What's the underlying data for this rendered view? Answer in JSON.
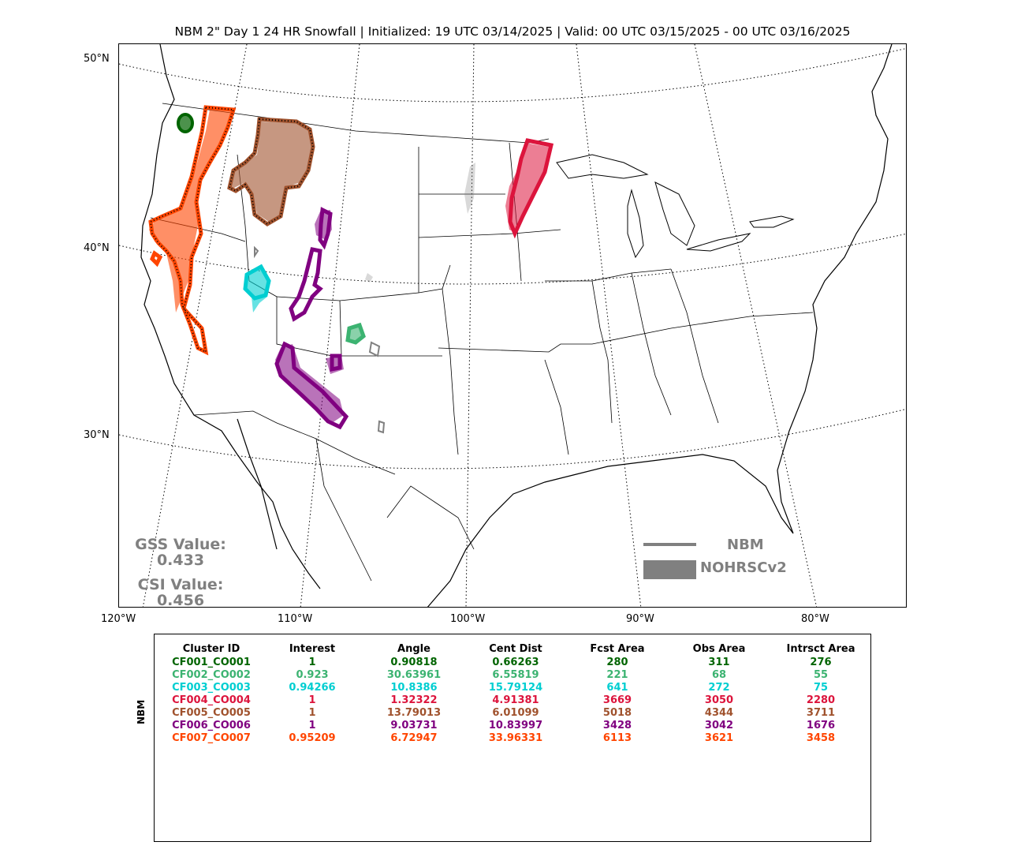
{
  "title": "NBM 2\" Day 1 24 HR Snowfall | Initialized: 19 UTC 03/14/2025 | Valid: 00 UTC 03/15/2025 - 00 UTC 03/16/2025",
  "lat_labels": [
    "50°N",
    "40°N",
    "30°N"
  ],
  "lon_labels": [
    "120°W",
    "110°W",
    "100°W",
    "90°W",
    "80°W"
  ],
  "gss": {
    "label": "GSS Value:",
    "value": "0.433"
  },
  "csi": {
    "label": "CSI Value:",
    "value": "0.456"
  },
  "legend": {
    "forecast_label": "NBM",
    "observed_label": "NOHRSCv2",
    "color": "#808080"
  },
  "table": {
    "side_label": "NBM",
    "headers": [
      "Cluster ID",
      "Interest",
      "Angle",
      "Cent Dist",
      "Fcst Area",
      "Obs Area",
      "Intrsct Area"
    ],
    "rows": [
      {
        "color": "#006400",
        "cells": [
          "CF001_CO001",
          "1",
          "0.90818",
          "0.66263",
          "280",
          "311",
          "276"
        ]
      },
      {
        "color": "#3cb371",
        "cells": [
          "CF002_CO002",
          "0.923",
          "30.63961",
          "6.55819",
          "221",
          "68",
          "55"
        ]
      },
      {
        "color": "#00ced1",
        "cells": [
          "CF003_CO003",
          "0.94266",
          "10.8386",
          "15.79124",
          "641",
          "272",
          "75"
        ]
      },
      {
        "color": "#dc143c",
        "cells": [
          "CF004_CO004",
          "1",
          "1.32322",
          "4.91381",
          "3669",
          "3050",
          "2280"
        ]
      },
      {
        "color": "#a0522d",
        "cells": [
          "CF005_CO005",
          "1",
          "13.79013",
          "6.01099",
          "5018",
          "4344",
          "3711"
        ]
      },
      {
        "color": "#800080",
        "cells": [
          "CF006_CO006",
          "1",
          "9.03731",
          "10.83997",
          "3428",
          "3042",
          "1676"
        ]
      },
      {
        "color": "#ff4500",
        "cells": [
          "CF007_CO007",
          "0.95209",
          "6.72947",
          "33.96331",
          "6113",
          "3621",
          "3458"
        ]
      }
    ]
  },
  "map_colors": {
    "unmatched": "#808080",
    "cluster_1": "#006400",
    "cluster_2": "#3cb371",
    "cluster_3": "#00ced1",
    "cluster_4": "#dc143c",
    "cluster_5": "#a0522d",
    "cluster_6": "#800080",
    "cluster_7": "#ff4500"
  }
}
